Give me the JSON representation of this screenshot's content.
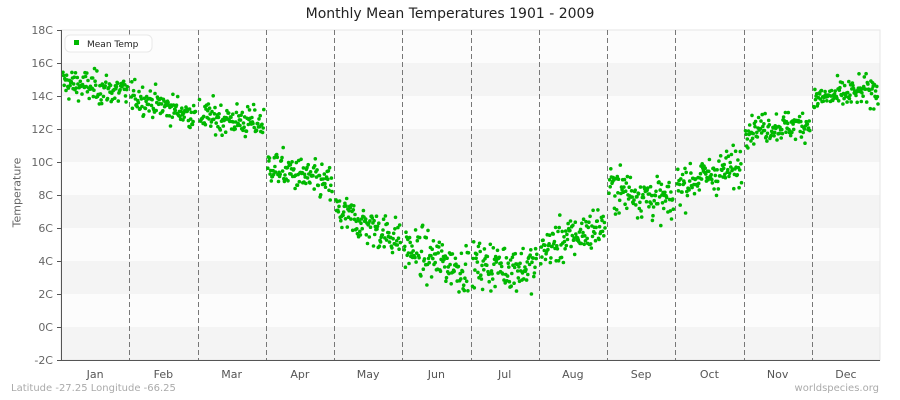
{
  "chart_data": {
    "type": "scatter",
    "title": "Monthly Mean Temperatures 1901 - 2009",
    "xlabel": "",
    "ylabel": "Temperature",
    "ylim": [
      -2,
      18
    ],
    "y_ticks": [
      "18C",
      "16C",
      "14C",
      "12C",
      "10C",
      "8C",
      "6C",
      "4C",
      "2C",
      "0C",
      "-2C"
    ],
    "categories": [
      "Jan",
      "Feb",
      "Mar",
      "Apr",
      "May",
      "Jun",
      "Jul",
      "Aug",
      "Sep",
      "Oct",
      "Nov",
      "Dec"
    ],
    "legend": [
      {
        "name": "Mean Temp",
        "color": "#00b800"
      }
    ],
    "legend_position": "top-left",
    "grid": "alternating horizontal bands, dashed vertical month separators",
    "points_per_month": 109,
    "series": [
      {
        "name": "Mean Temp",
        "month_ranges": [
          {
            "month": "Jan",
            "start_mean": 14.8,
            "end_mean": 14.2,
            "spread": 0.9,
            "min": 12.8,
            "max": 16.5
          },
          {
            "month": "Feb",
            "start_mean": 14.0,
            "end_mean": 12.8,
            "spread": 0.8,
            "min": 11.2,
            "max": 15.0
          },
          {
            "month": "Mar",
            "start_mean": 12.8,
            "end_mean": 12.3,
            "spread": 0.9,
            "min": 10.0,
            "max": 15.0
          },
          {
            "month": "Apr",
            "start_mean": 9.8,
            "end_mean": 8.6,
            "spread": 1.0,
            "min": 6.2,
            "max": 11.8
          },
          {
            "month": "May",
            "start_mean": 7.0,
            "end_mean": 5.3,
            "spread": 1.1,
            "min": 2.5,
            "max": 9.4
          },
          {
            "month": "Jun",
            "start_mean": 4.8,
            "end_mean": 3.4,
            "spread": 1.3,
            "min": -0.4,
            "max": 7.2
          },
          {
            "month": "Jul",
            "start_mean": 3.8,
            "end_mean": 3.6,
            "spread": 1.3,
            "min": -0.3,
            "max": 7.3
          },
          {
            "month": "Aug",
            "start_mean": 4.7,
            "end_mean": 6.2,
            "spread": 1.2,
            "min": 2.0,
            "max": 8.6
          },
          {
            "month": "Sep",
            "start_mean": 8.5,
            "end_mean": 7.5,
            "spread": 1.2,
            "min": 5.5,
            "max": 11.8
          },
          {
            "month": "Oct",
            "start_mean": 8.6,
            "end_mean": 9.8,
            "spread": 1.1,
            "min": 5.8,
            "max": 11.2
          },
          {
            "month": "Nov",
            "start_mean": 12.0,
            "end_mean": 12.3,
            "spread": 0.8,
            "min": 10.2,
            "max": 14.8
          },
          {
            "month": "Dec",
            "start_mean": 13.8,
            "end_mean": 14.4,
            "spread": 0.8,
            "min": 12.5,
            "max": 16.7
          }
        ]
      }
    ]
  },
  "footer": {
    "location": "Latitude -27.25 Longitude -66.25",
    "source": "worldspecies.org"
  },
  "colors": {
    "point": "#00b800",
    "band_light": "#fcfcfc",
    "band_dark": "#f4f4f4",
    "axis": "#555555",
    "separator": "#777777"
  }
}
